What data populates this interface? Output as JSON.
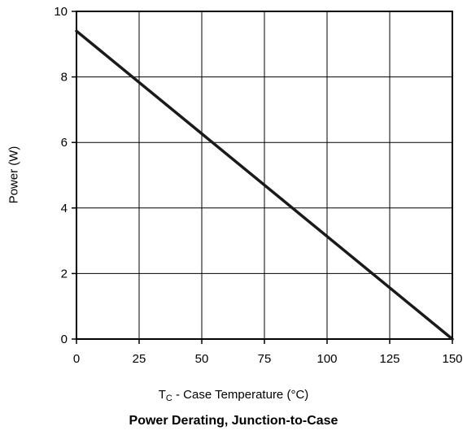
{
  "chart_data": {
    "type": "line",
    "title": "Power Derating, Junction-to-Case",
    "xlabel": {
      "main": "T",
      "subscript": "C",
      "rest": " - Case Temperature (°C)"
    },
    "ylabel": "Power (W)",
    "xlim": [
      0,
      150
    ],
    "ylim": [
      0,
      10
    ],
    "xticks": [
      0,
      25,
      50,
      75,
      100,
      125,
      150
    ],
    "yticks": [
      0,
      2,
      4,
      6,
      8,
      10
    ],
    "grid": true,
    "series": [
      {
        "x": [
          0,
          150
        ],
        "y": [
          9.4,
          0
        ]
      }
    ],
    "colors": {
      "line": "#1a1a1a",
      "grid": "#000000",
      "frame": "#000000"
    }
  }
}
